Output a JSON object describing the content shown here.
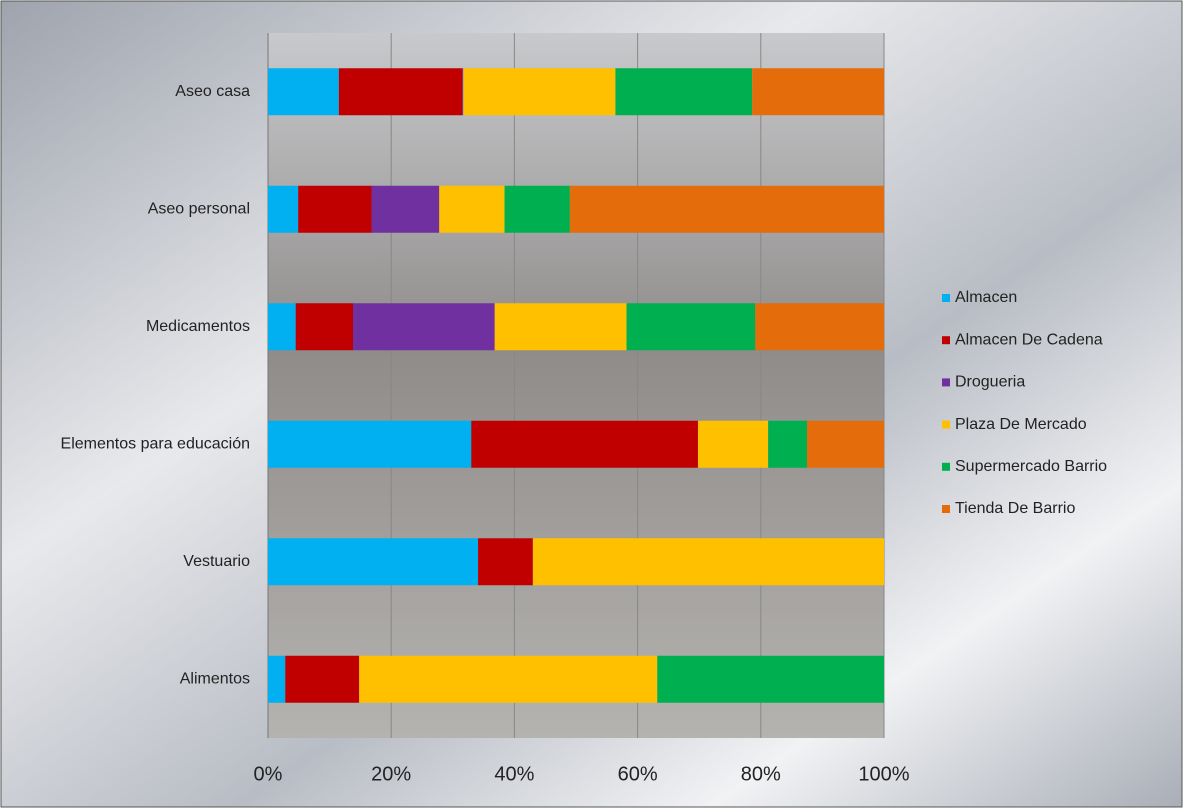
{
  "chart_data": {
    "type": "stacked_barh",
    "categories": [
      "Aseo casa",
      "Aseo personal",
      "Medicamentos",
      "Elementos para educación",
      "Vestuario",
      "Alimentos"
    ],
    "series": [
      {
        "name": "Almacen",
        "color": "#00b0f0",
        "values": [
          11.5,
          4.9,
          4.5,
          33,
          34.1,
          2.8
        ]
      },
      {
        "name": "Almacen De Cadena",
        "color": "#c00000",
        "values": [
          20,
          11.9,
          9.3,
          36.8,
          8.9,
          12
        ]
      },
      {
        "name": "Drogueria",
        "color": "#7030a0",
        "values": [
          0.2,
          11,
          23,
          0,
          0,
          0
        ]
      },
      {
        "name": "Plaza De Mercado",
        "color": "#ffc000",
        "values": [
          24.7,
          10.6,
          21.4,
          11.4,
          57,
          48.4
        ]
      },
      {
        "name": "Supermercado Barrio",
        "color": "#00b050",
        "values": [
          22.2,
          10.6,
          20.9,
          6.3,
          0,
          36.8
        ]
      },
      {
        "name": "Tienda De Barrio",
        "color": "#e46c0a",
        "values": [
          21.4,
          51,
          20.9,
          12.5,
          0,
          0
        ]
      }
    ],
    "xlim": [
      0,
      100
    ],
    "xticks": [
      {
        "value": 0,
        "label": "0%"
      },
      {
        "value": 20,
        "label": "20%"
      },
      {
        "value": 40,
        "label": "40%"
      },
      {
        "value": 60,
        "label": "60%"
      },
      {
        "value": 80,
        "label": "80%"
      },
      {
        "value": 100,
        "label": "100%"
      }
    ],
    "grid": true,
    "legend": "right"
  }
}
